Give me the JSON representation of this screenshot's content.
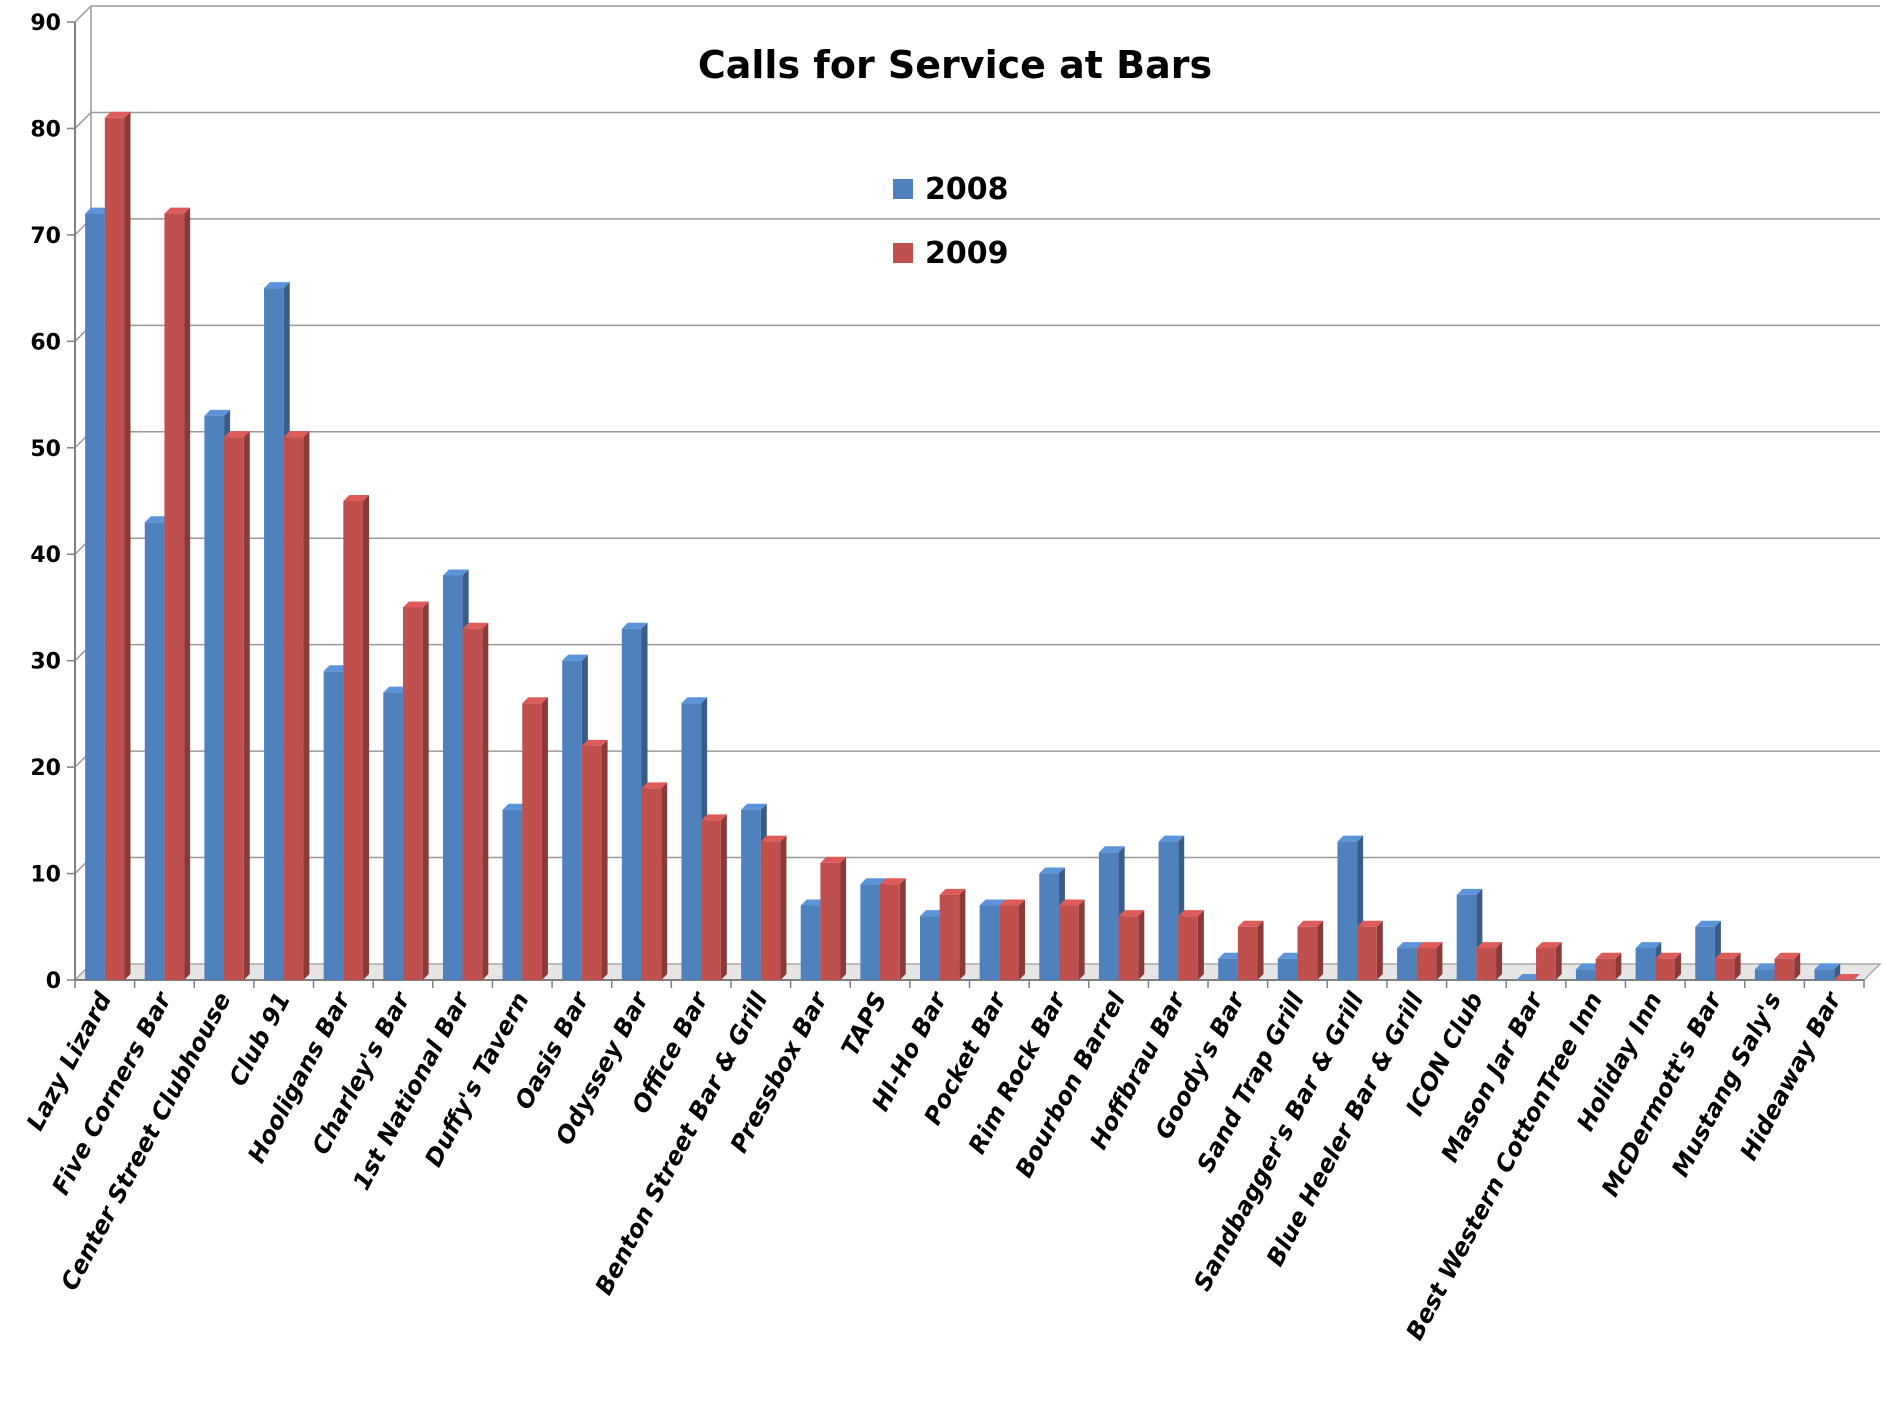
{
  "chart_data": {
    "type": "bar",
    "title": "Calls for Service at Bars",
    "xlabel": "",
    "ylabel": "",
    "ylim": [
      0,
      90
    ],
    "yticks": [
      0,
      10,
      20,
      30,
      40,
      50,
      60,
      70,
      80,
      90
    ],
    "grid": true,
    "legend_position": "top-center",
    "categories": [
      "Lazy Lizard",
      "Five Corners Bar",
      "Center Street Clubhouse",
      "Club 91",
      "Hooligans Bar",
      "Charley's Bar",
      "1st National Bar",
      "Duffy's Tavern",
      "Oasis Bar",
      "Odyssey Bar",
      "Office Bar",
      "Benton Street Bar & Grill",
      "Pressbox Bar",
      "TAPS",
      "HI-Ho Bar",
      "Pocket Bar",
      "Rim Rock Bar",
      "Bourbon Barrel",
      "Hoffbrau Bar",
      "Goody's Bar",
      "Sand Trap Grill",
      "Sandbagger's Bar & Grill",
      "Blue Heeler Bar & Grill",
      "ICON Club",
      "Mason Jar Bar",
      "Best Western CottonTree Inn",
      "Holiday Inn",
      "McDermott's Bar",
      "Mustang Saly's",
      "Hideaway Bar"
    ],
    "series": [
      {
        "name": "2008",
        "color": "#4f81bd",
        "values": [
          72,
          43,
          53,
          65,
          29,
          27,
          38,
          16,
          30,
          33,
          26,
          16,
          7,
          9,
          6,
          7,
          10,
          12,
          13,
          2,
          2,
          13,
          3,
          8,
          0,
          1,
          3,
          5,
          1,
          1
        ]
      },
      {
        "name": "2009",
        "color": "#c0504d",
        "values": [
          81,
          72,
          51,
          51,
          45,
          35,
          33,
          26,
          22,
          18,
          15,
          13,
          11,
          9,
          8,
          7,
          7,
          6,
          6,
          5,
          5,
          5,
          3,
          3,
          3,
          2,
          2,
          2,
          2,
          0
        ]
      }
    ]
  }
}
